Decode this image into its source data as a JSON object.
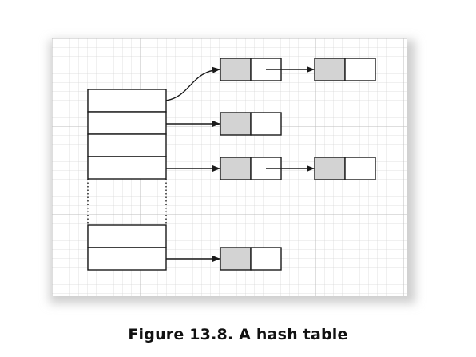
{
  "figure": {
    "caption": "Figure 13.8. A hash table",
    "colors": {
      "grid_fine": "#d8d8d8",
      "grid_major": "#bdbdbd",
      "paper": "#ffffff",
      "shadow": "#cfcfcf",
      "stroke": "#1a1a1a",
      "node_key_fill": "#d3d3d3",
      "node_next_fill": "#ffffff"
    },
    "table": {
      "visible_buckets_top": 4,
      "visible_buckets_bottom": 2,
      "has_gap": true
    },
    "chains": [
      {
        "bucket": "bucket-1",
        "nodes": 2
      },
      {
        "bucket": "bucket-2",
        "nodes": 1
      },
      {
        "bucket": "bucket-4",
        "nodes": 2
      },
      {
        "bucket": "bucket-6",
        "nodes": 1
      }
    ]
  }
}
